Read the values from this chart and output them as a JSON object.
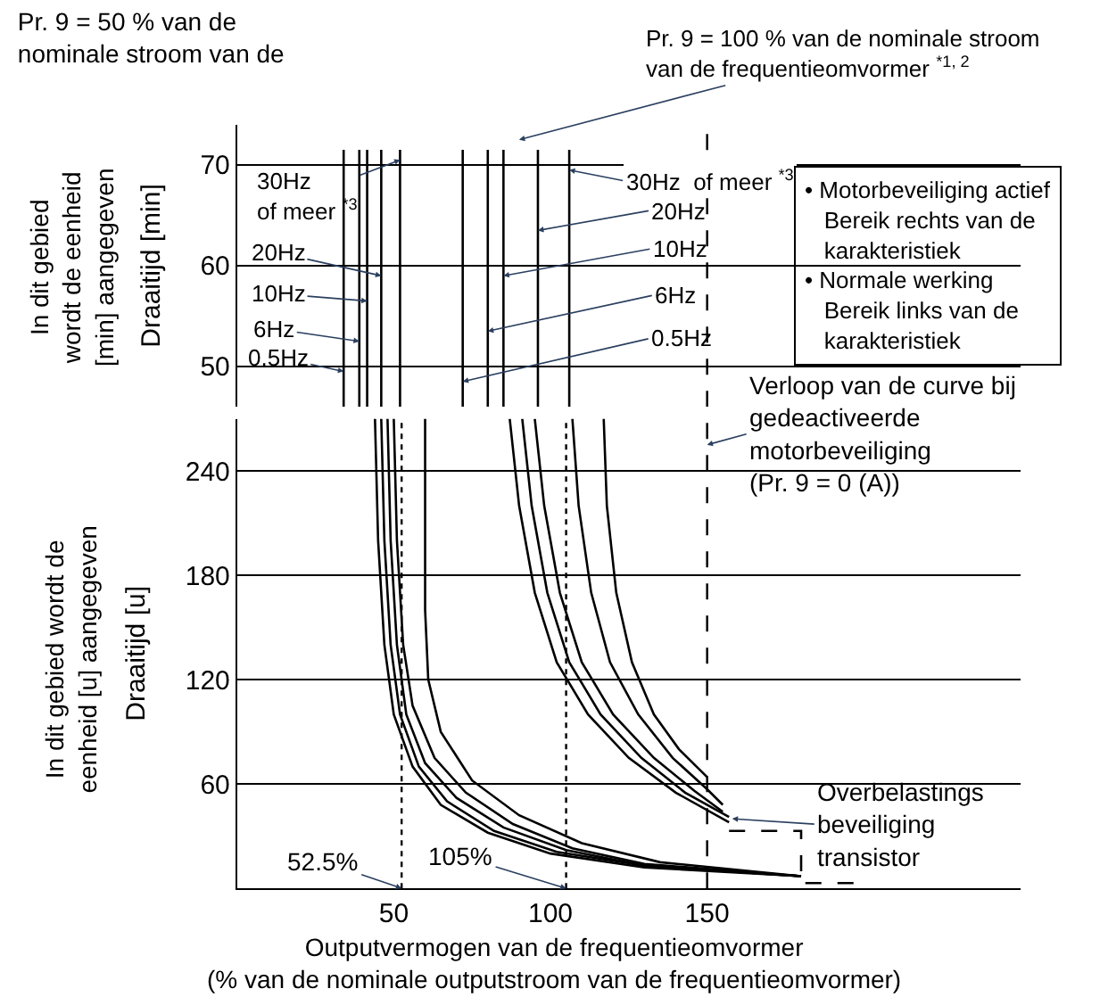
{
  "chart_data": [
    {
      "type": "line",
      "title": "Pr. 9 = 50 % van de\nnominale stroom van de",
      "ylabel": "Draaitijd [min]",
      "xlim": [
        0,
        250
      ],
      "ylim": [
        46,
        74
      ],
      "yticks": [
        50,
        60,
        70
      ],
      "grid": "y",
      "tick_labels": "y",
      "series": [
        {
          "color": "#000000",
          "x": [
            34,
            34
          ],
          "values": [
            71.5,
            46
          ]
        },
        {
          "color": "#000000",
          "x": [
            39,
            39
          ],
          "values": [
            71.5,
            46
          ]
        },
        {
          "color": "#000000",
          "x": [
            41.5,
            41.5
          ],
          "values": [
            71.5,
            46
          ]
        },
        {
          "color": "#000000",
          "x": [
            46,
            46
          ],
          "values": [
            71.5,
            46
          ]
        },
        {
          "color": "#000000",
          "x": [
            52,
            52
          ],
          "values": [
            71.5,
            46
          ]
        },
        {
          "color": "#000000",
          "x": [
            72,
            72
          ],
          "values": [
            71.5,
            46
          ]
        },
        {
          "color": "#000000",
          "x": [
            80,
            80
          ],
          "values": [
            71.5,
            46
          ]
        },
        {
          "color": "#000000",
          "x": [
            85,
            85
          ],
          "values": [
            71.5,
            46
          ]
        },
        {
          "color": "#000000",
          "x": [
            96,
            96
          ],
          "values": [
            71.5,
            46
          ]
        },
        {
          "color": "#000000",
          "x": [
            106,
            106
          ],
          "values": [
            71.5,
            46
          ]
        }
      ],
      "ref_lines": [
        {
          "axis": "x",
          "value": 150,
          "line_style": "dashed",
          "color": "#000000"
        }
      ],
      "annotations": [
        {
          "text": "Pr. 9 = 100 % van de nominale stroom\nvan de frequentieomvormer $^{*1, 2}$",
          "x": 90,
          "y": 72.5
        },
        {
          "text": "30Hz\nof meer $^{*3}$",
          "x": 52,
          "y": 70.5
        },
        {
          "text": "20Hz",
          "x": 46,
          "y": 59
        },
        {
          "text": "10Hz",
          "x": 41.5,
          "y": 56.5
        },
        {
          "text": "6Hz",
          "x": 39,
          "y": 52.5
        },
        {
          "text": "0.5Hz",
          "x": 34,
          "y": 49.5
        },
        {
          "text": "30Hz  of meer $^{*3}$",
          "x": 106,
          "y": 69.5
        },
        {
          "text": "20Hz",
          "x": 96,
          "y": 63.5
        },
        {
          "text": "10Hz",
          "x": 85,
          "y": 59
        },
        {
          "text": "6Hz",
          "x": 80,
          "y": 53.5
        },
        {
          "text": "0.5Hz",
          "x": 72,
          "y": 48.5
        },
        "• Motorbeveiliging actief\n   Bereik rechts van de\n   karakteristiek\n• Normale werking\n   Bereik links van de\n   karakteristiek",
        "In dit gebied\nwordt de eenheid\n[min] aangegeven"
      ]
    },
    {
      "type": "line",
      "ylabel": "Draaitijd [u]",
      "xlabel": "Outputvermogen van de frequentieomvormer\n(% van de nominale outputstroom van de frequentieomvormer)",
      "xlim": [
        0,
        250
      ],
      "xticks": [
        50,
        100,
        150
      ],
      "ylim": [
        0,
        270
      ],
      "yticks": [
        60,
        120,
        180,
        240
      ],
      "grid": "y",
      "series": [
        {
          "color": "#000000",
          "x": [
            44,
            45,
            47,
            50,
            56,
            65,
            80,
            100,
            130,
            180
          ],
          "values": [
            270,
            200,
            140,
            100,
            70,
            48,
            32,
            20,
            12,
            7
          ]
        },
        {
          "color": "#000000",
          "x": [
            46,
            47,
            49,
            52,
            58,
            67,
            82,
            102,
            130,
            180
          ],
          "values": [
            270,
            200,
            140,
            100,
            70,
            50,
            33,
            21,
            13,
            7
          ]
        },
        {
          "color": "#000000",
          "x": [
            48,
            49,
            51,
            54,
            60,
            70,
            85,
            105,
            130,
            180
          ],
          "values": [
            270,
            200,
            140,
            100,
            72,
            52,
            35,
            22,
            13,
            7
          ]
        },
        {
          "color": "#000000",
          "x": [
            50,
            51,
            53,
            56,
            63,
            73,
            88,
            107,
            130,
            180
          ],
          "values": [
            270,
            200,
            140,
            105,
            75,
            55,
            37,
            23,
            14,
            7
          ]
        },
        {
          "color": "#000000",
          "x": [
            60,
            60,
            60,
            61,
            65,
            75,
            90,
            110,
            135,
            180
          ],
          "values": [
            270,
            200,
            160,
            120,
            90,
            62,
            42,
            26,
            15,
            7
          ]
        },
        {
          "color": "#000000",
          "x": [
            87,
            90,
            95,
            102,
            112,
            125,
            140,
            157
          ],
          "values": [
            270,
            220,
            170,
            130,
            100,
            75,
            55,
            38
          ]
        },
        {
          "color": "#000000",
          "x": [
            91,
            94,
            99,
            106,
            116,
            129,
            143,
            157
          ],
          "values": [
            270,
            220,
            170,
            130,
            100,
            75,
            55,
            41
          ]
        },
        {
          "color": "#000000",
          "x": [
            95,
            98,
            103,
            110,
            120,
            133,
            146,
            155
          ],
          "values": [
            270,
            220,
            170,
            130,
            100,
            75,
            56,
            44
          ]
        },
        {
          "color": "#000000",
          "x": [
            107,
            109,
            113,
            119,
            128,
            139,
            150,
            155
          ],
          "values": [
            270,
            220,
            170,
            130,
            100,
            75,
            57,
            48
          ]
        },
        {
          "color": "#000000",
          "x": [
            117,
            118,
            121,
            126,
            133,
            141,
            150
          ],
          "values": [
            270,
            220,
            170,
            130,
            100,
            80,
            64
          ]
        },
        {
          "color": "#000000",
          "x": [
            157,
            180,
            180,
            200,
            200
          ],
          "values": [
            33,
            33,
            3,
            3,
            0
          ],
          "line_style": "dashed"
        }
      ],
      "ref_lines": [
        {
          "axis": "x",
          "value": 52.5,
          "label": "52.5%",
          "line_style": "dotted",
          "color": "#000000"
        },
        {
          "axis": "x",
          "value": 105,
          "label": "105%",
          "line_style": "dotted",
          "color": "#000000"
        },
        {
          "axis": "x",
          "value": 150,
          "line_style": "dashed",
          "color": "#000000"
        }
      ],
      "annotations": [
        {
          "text": "Verloop van de curve bij\ngedeactiveerde\nmotorbeveiliging\n(Pr. 9 = 0 (A))",
          "x": 150,
          "y": 255
        },
        {
          "text": "Overbelastings\nbeveiliging\ntransistor",
          "x": 158,
          "y": 40
        },
        "In dit gebied wordt de\neenheid [u] aangegeven"
      ]
    }
  ]
}
